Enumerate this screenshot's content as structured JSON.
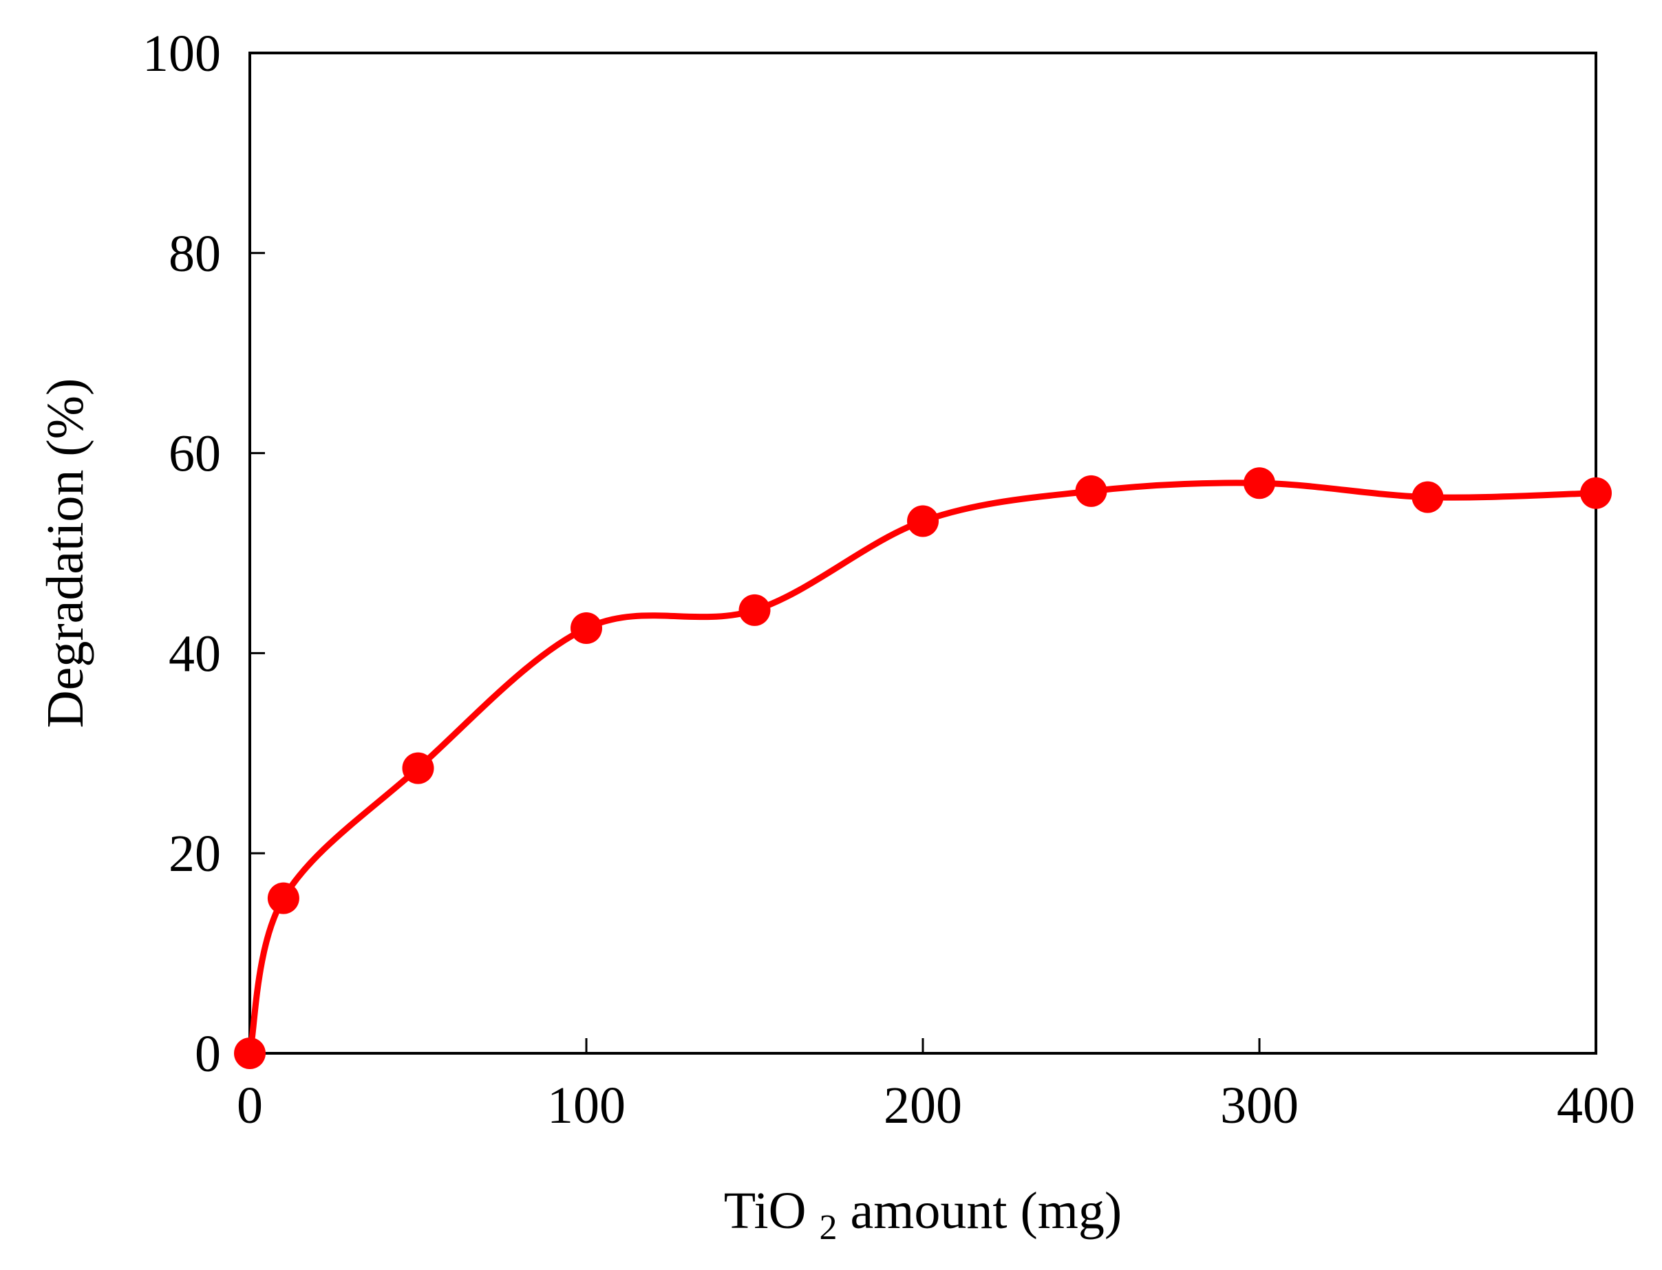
{
  "chart_data": {
    "type": "line",
    "title": "",
    "xlabel": {
      "parts": [
        "TiO",
        "2",
        " amount (mg)"
      ]
    },
    "ylabel": "Degradation (%)",
    "xlim": [
      0,
      400
    ],
    "ylim": [
      0,
      100
    ],
    "xticks": [
      0,
      100,
      200,
      300,
      400
    ],
    "yticks": [
      0,
      20,
      40,
      60,
      80,
      100
    ],
    "x_tick_labels": [
      "0",
      "100",
      "200",
      "300",
      "400"
    ],
    "y_tick_labels": [
      "0",
      "20",
      "40",
      "60",
      "80",
      "100"
    ],
    "grid": false,
    "smooth": true,
    "series": [
      {
        "color": "#ff0000",
        "marker": "circle",
        "x": [
          0,
          10,
          50,
          100,
          150,
          200,
          250,
          300,
          350,
          400
        ],
        "y": [
          0,
          15.5,
          28.5,
          42.5,
          44.3,
          53.2,
          56.2,
          57.0,
          55.6,
          56.0
        ]
      }
    ]
  }
}
